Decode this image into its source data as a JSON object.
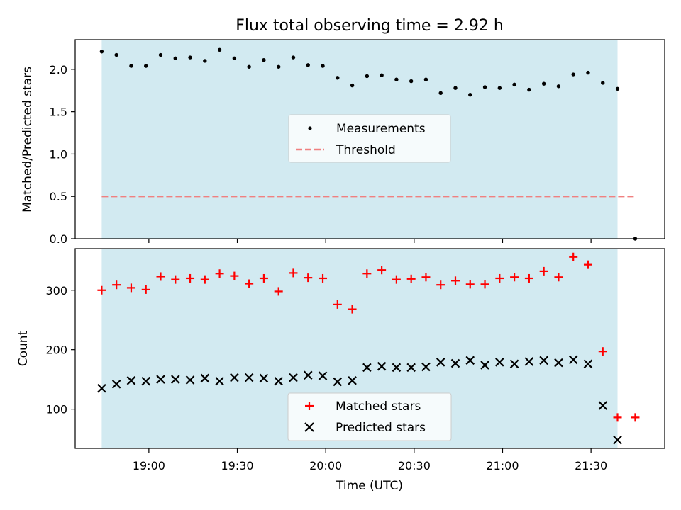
{
  "chart_data": {
    "title": "Flux total observing time = 2.92 h",
    "xlabel": "Time (UTC)",
    "x_ticks": [
      "19:00",
      "19:30",
      "20:00",
      "20:30",
      "21:00",
      "21:30"
    ],
    "x_tick_minutes": [
      1140,
      1170,
      1200,
      1230,
      1260,
      1290
    ],
    "xlim_minutes": [
      1115,
      1315
    ],
    "observing_window_minutes": [
      1124,
      1299
    ],
    "colors": {
      "observing_window": "#add8e6",
      "measurements": "#000000",
      "threshold": "#f08080",
      "matched": "#ff0000",
      "predicted": "#000000"
    },
    "panels": [
      {
        "type": "scatter",
        "ylabel": "Matched/Predicted stars",
        "ylim": [
          0,
          2.35
        ],
        "y_ticks": [
          "0.0",
          "0.5",
          "1.0",
          "1.5",
          "2.0"
        ],
        "legend_position": "center",
        "threshold": {
          "name": "Threshold",
          "y": 0.5,
          "x_range_minutes": [
            1124,
            1305
          ]
        },
        "series": [
          {
            "name": "Measurements",
            "marker": "dot",
            "x_minutes": [
              1124,
              1129,
              1134,
              1139,
              1144,
              1149,
              1154,
              1159,
              1164,
              1169,
              1174,
              1179,
              1184,
              1189,
              1194,
              1199,
              1204,
              1209,
              1214,
              1219,
              1224,
              1229,
              1234,
              1239,
              1244,
              1249,
              1254,
              1259,
              1264,
              1269,
              1274,
              1279,
              1284,
              1289,
              1294,
              1299,
              1305
            ],
            "values": [
              2.21,
              2.17,
              2.04,
              2.04,
              2.17,
              2.13,
              2.14,
              2.1,
              2.23,
              2.13,
              2.03,
              2.11,
              2.03,
              2.14,
              2.05,
              2.04,
              1.9,
              1.81,
              1.92,
              1.93,
              1.88,
              1.86,
              1.88,
              1.72,
              1.78,
              1.7,
              1.79,
              1.78,
              1.82,
              1.76,
              1.83,
              1.8,
              1.94,
              1.96,
              1.84,
              1.77,
              0.0
            ]
          }
        ]
      },
      {
        "type": "scatter",
        "ylabel": "Count",
        "ylim": [
          34,
          370
        ],
        "y_ticks": [
          "100",
          "200",
          "300"
        ],
        "y_tick_values": [
          100,
          200,
          300
        ],
        "legend_position": "lower center",
        "series": [
          {
            "name": "Matched stars",
            "marker": "plus",
            "x_minutes": [
              1124,
              1129,
              1134,
              1139,
              1144,
              1149,
              1154,
              1159,
              1164,
              1169,
              1174,
              1179,
              1184,
              1189,
              1194,
              1199,
              1204,
              1209,
              1214,
              1219,
              1224,
              1229,
              1234,
              1239,
              1244,
              1249,
              1254,
              1259,
              1264,
              1269,
              1274,
              1279,
              1284,
              1289,
              1294,
              1299,
              1305
            ],
            "values": [
              300,
              309,
              304,
              301,
              323,
              318,
              320,
              318,
              328,
              324,
              311,
              320,
              298,
              329,
              321,
              320,
              276,
              268,
              328,
              334,
              318,
              319,
              322,
              309,
              316,
              310,
              310,
              320,
              322,
              320,
              332,
              322,
              356,
              343,
              197,
              86,
              86
            ]
          },
          {
            "name": "Predicted stars",
            "marker": "x",
            "x_minutes": [
              1124,
              1129,
              1134,
              1139,
              1144,
              1149,
              1154,
              1159,
              1164,
              1169,
              1174,
              1179,
              1184,
              1189,
              1194,
              1199,
              1204,
              1209,
              1214,
              1219,
              1224,
              1229,
              1234,
              1239,
              1244,
              1249,
              1254,
              1259,
              1264,
              1269,
              1274,
              1279,
              1284,
              1289,
              1294,
              1299
            ],
            "values": [
              135,
              142,
              148,
              147,
              150,
              150,
              149,
              152,
              147,
              153,
              153,
              152,
              147,
              153,
              157,
              156,
              146,
              148,
              170,
              172,
              170,
              170,
              171,
              179,
              177,
              182,
              174,
              179,
              176,
              180,
              182,
              178,
              183,
              176,
              106,
              48
            ]
          }
        ]
      }
    ]
  }
}
